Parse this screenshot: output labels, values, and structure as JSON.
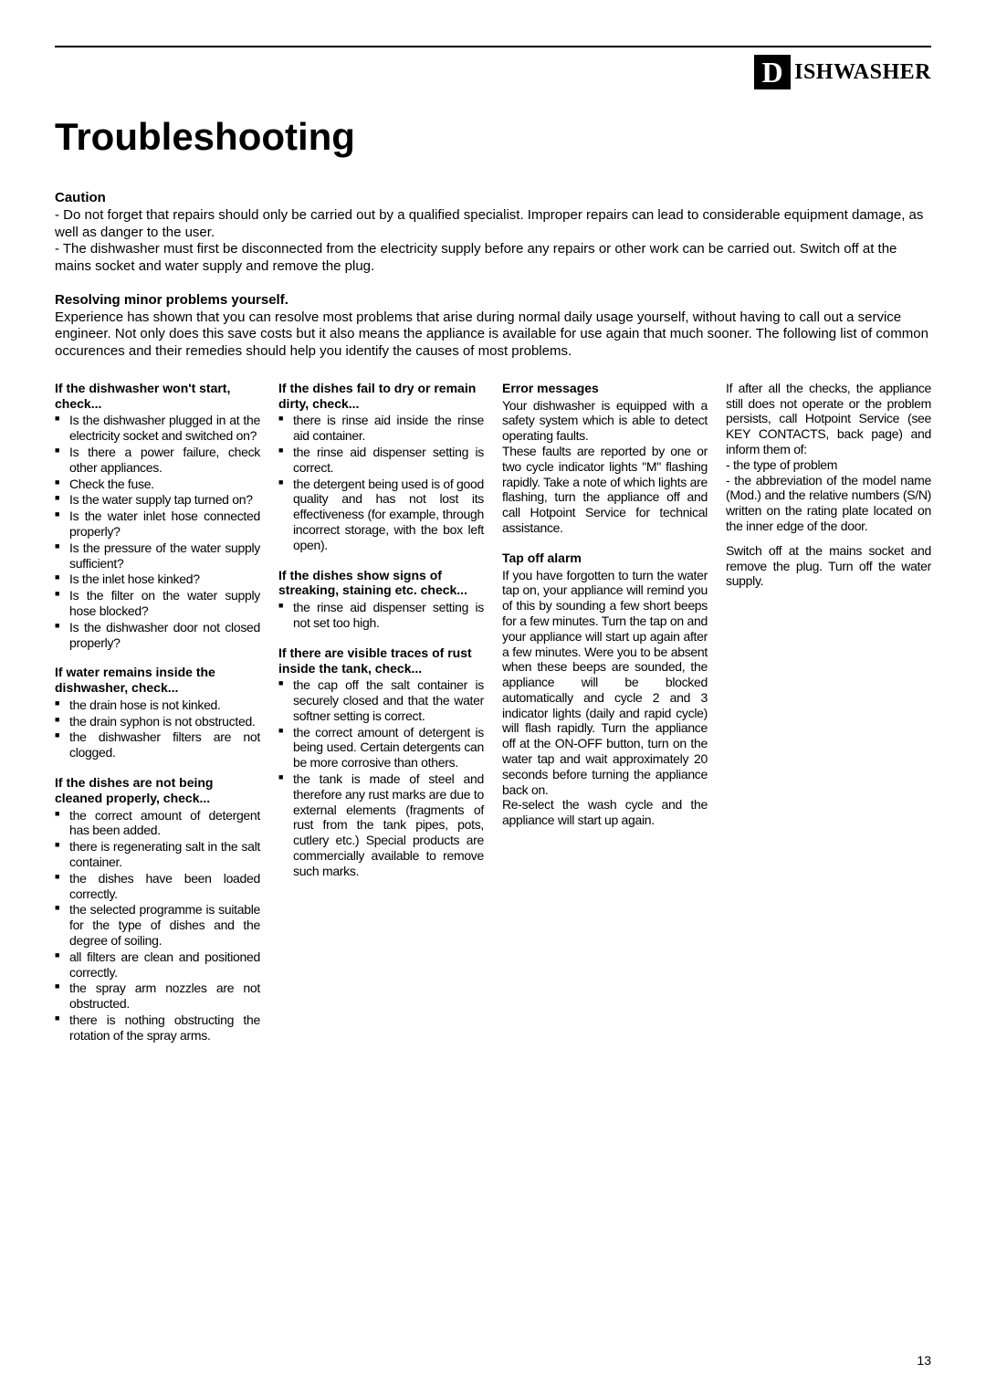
{
  "logo": {
    "letter": "D",
    "word": "ISHWASHER"
  },
  "title": "Troubleshooting",
  "caution": {
    "heading": "Caution",
    "p1": "- Do not forget that repairs should only be carried out by a qualified specialist. Improper repairs can lead to considerable equipment damage, as well as danger to the user.",
    "p2": "- The dishwasher must first be disconnected from the electricity supply before any repairs or other work can be carried out. Switch off at the mains socket and water supply and remove the plug."
  },
  "resolving": {
    "heading": "Resolving minor problems yourself.",
    "body": "Experience has shown that you can resolve most problems that arise during normal daily usage yourself, without having to call out a service engineer. Not only does this save costs but it also means the appliance is available for use again that much sooner. The following list of common occurences and their remedies should help you identify the causes of most problems."
  },
  "col1": {
    "s1": {
      "heading": "If the dishwasher won't start, check...",
      "items": [
        "Is the dishwasher plugged in at the electricity socket and switched on?",
        "Is there a power failure, check other appliances.",
        "Check the fuse.",
        "Is the water supply tap turned on?",
        "Is the water inlet hose connected properly?",
        "Is the pressure of the water supply sufficient?",
        "Is the inlet hose kinked?",
        "Is the filter on the water supply hose blocked?",
        "Is the dishwasher door not closed properly?"
      ]
    },
    "s2": {
      "heading": "If water remains inside the dishwasher, check...",
      "items": [
        "the drain hose is not kinked.",
        "the drain syphon is not obstructed.",
        "the dishwasher filters are not clogged."
      ]
    },
    "s3": {
      "heading": "If the dishes are not being cleaned properly, check...",
      "items": [
        "the correct amount of detergent has been added.",
        "there is regenerating salt in the salt container.",
        "the dishes have been loaded correctly.",
        "the selected programme is suitable for the type of dishes and the degree of soiling.",
        "all filters are clean and positioned correctly.",
        "the spray arm nozzles are not obstructed.",
        "there is nothing obstructing the rotation of the spray arms."
      ]
    }
  },
  "col2": {
    "s1": {
      "heading": "If the dishes fail to dry or remain dirty, check...",
      "items": [
        "there is rinse aid inside the rinse aid container.",
        "the rinse aid dispenser setting is correct.",
        "the detergent being used is of good quality and has not lost its effectiveness (for example, through incorrect storage, with the box left open)."
      ]
    },
    "s2": {
      "heading": "If the dishes show signs of streaking, staining etc. check...",
      "items": [
        "the rinse aid dispenser setting is not set too high."
      ]
    },
    "s3": {
      "heading": "If there are visible traces of rust inside the tank, check...",
      "items": [
        "the cap off the salt container is securely closed and that the water softner setting is correct.",
        "the correct amount of detergent is being used. Certain detergents can be more corrosive than others.",
        "the tank is made of steel and therefore any rust marks are due to external elements (fragments of rust from the tank pipes, pots, cutlery etc.) Special products are commercially available to remove such marks."
      ]
    }
  },
  "col3": {
    "s1": {
      "heading": "Error messages",
      "p1": "Your dishwasher is equipped with a safety system which is able to detect operating faults.",
      "p2": "These faults are reported by one or two cycle indicator lights \"M\" flashing rapidly. Take a note of which lights are flashing, turn the appliance off and call Hotpoint Service for technical assistance."
    },
    "s2": {
      "heading": "Tap off alarm",
      "p1": "If you have forgotten to turn the water tap on, your appliance will remind you of this by sounding a few short beeps for a few minutes. Turn the tap on and your appliance will start up again after a few minutes. Were you to be absent when these beeps are sounded, the appliance will be blocked automatically and cycle 2 and 3 indicator lights (daily and rapid cycle) will flash rapidly. Turn the appliance off at the ON-OFF button, turn on the water tap and wait approximately 20 seconds before turning the appliance back on.",
      "p2": "Re-select the wash cycle and the appliance will start up again."
    }
  },
  "col4": {
    "p1": "If after all the checks, the appliance still does not operate or the problem persists, call Hotpoint Service (see KEY CONTACTS, back page) and inform them of:",
    "p2": "- the type of problem",
    "p3": "- the abbreviation of the model name (Mod.) and the relative numbers (S/N) written on the rating plate located on the inner edge of the door.",
    "p4": "Switch off at the mains socket and remove the plug. Turn off the water supply."
  },
  "page": "13"
}
